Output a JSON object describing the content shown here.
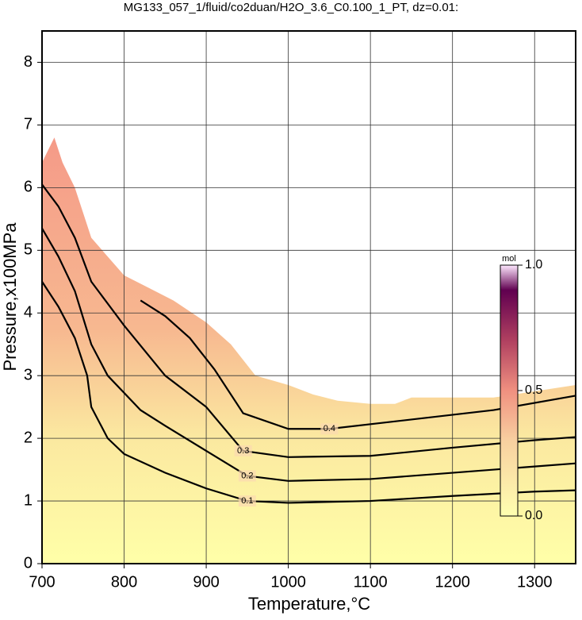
{
  "chart_data": {
    "type": "contour",
    "title": "MG133_057_1/fluid/co2duan/H2O_3.6_C0.100_1_PT, dz=0.01:",
    "x_label": "Temperature,°C",
    "y_label": "Pressure,x100MPa",
    "xlim": [
      700,
      1350
    ],
    "ylim": [
      0,
      8.5
    ],
    "xticks": [
      700,
      800,
      900,
      1000,
      1100,
      1200,
      1300
    ],
    "yticks": [
      0,
      1,
      2,
      3,
      4,
      5,
      6,
      7,
      8
    ],
    "grid": true,
    "region": {
      "x": [
        700,
        715,
        725,
        740,
        760,
        780,
        800,
        830,
        860,
        900,
        930,
        960,
        1000,
        1030,
        1060,
        1100,
        1130,
        1150,
        1250,
        1350
      ],
      "y": [
        6.4,
        6.8,
        6.4,
        6.0,
        5.2,
        4.9,
        4.6,
        4.4,
        4.2,
        3.85,
        3.5,
        3.0,
        2.85,
        2.7,
        2.6,
        2.55,
        2.55,
        2.65,
        2.65,
        2.85
      ]
    },
    "series": [
      {
        "name": "0.1",
        "color": "#000000",
        "x": [
          700,
          720,
          740,
          755,
          760,
          780,
          800,
          850,
          900,
          950,
          1000,
          1100,
          1200,
          1300,
          1350
        ],
        "values": [
          4.5,
          4.1,
          3.6,
          3.0,
          2.5,
          2.0,
          1.75,
          1.45,
          1.2,
          1.0,
          0.97,
          1.0,
          1.08,
          1.15,
          1.17
        ]
      },
      {
        "name": "0.2",
        "color": "#000000",
        "x": [
          700,
          720,
          740,
          760,
          780,
          820,
          850,
          900,
          950,
          1000,
          1100,
          1200,
          1300,
          1350
        ],
        "values": [
          5.35,
          4.9,
          4.35,
          3.5,
          3.0,
          2.45,
          2.2,
          1.8,
          1.4,
          1.32,
          1.35,
          1.45,
          1.55,
          1.6
        ]
      },
      {
        "name": "0.3",
        "color": "#000000",
        "x": [
          700,
          720,
          740,
          760,
          800,
          850,
          900,
          945,
          1000,
          1100,
          1200,
          1300,
          1350
        ],
        "values": [
          6.05,
          5.7,
          5.2,
          4.5,
          3.8,
          3.0,
          2.5,
          1.8,
          1.7,
          1.72,
          1.85,
          1.97,
          2.02
        ]
      },
      {
        "name": "0.4",
        "color": "#000000",
        "x": [
          820,
          850,
          880,
          910,
          945,
          1000,
          1050,
          1150,
          1250,
          1350
        ],
        "values": [
          4.2,
          3.95,
          3.6,
          3.1,
          2.4,
          2.15,
          2.15,
          2.3,
          2.45,
          2.68
        ]
      }
    ],
    "colorbar": {
      "unit": "mol",
      "lim": [
        0,
        1
      ],
      "ticks": [
        {
          "value": 0,
          "label": "0.0"
        },
        {
          "value": 0.5,
          "label": "0.5"
        },
        {
          "value": 1,
          "label": "1.0"
        }
      ]
    }
  }
}
